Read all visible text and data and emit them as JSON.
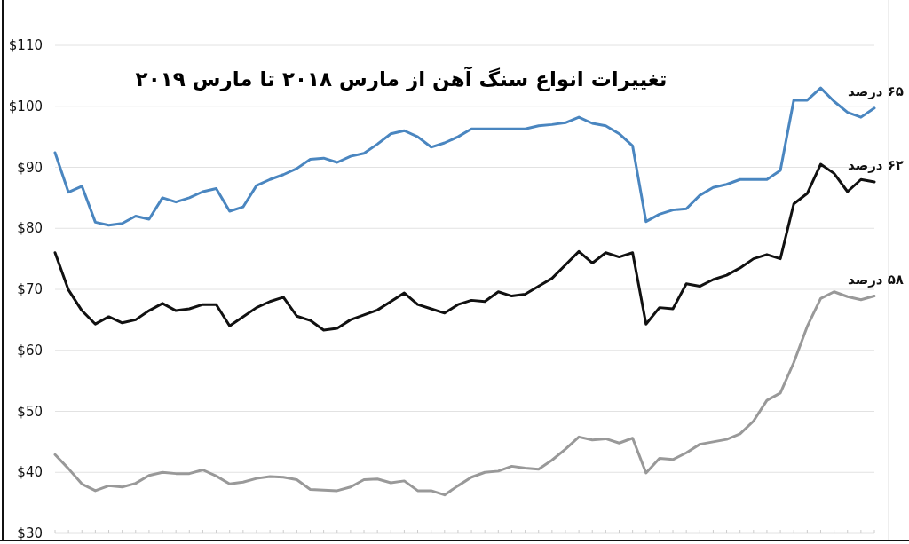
{
  "chart_data": {
    "type": "line",
    "title": "تغییرات انواع سنگ آهن از مارس ۲۰۱۸ تا مارس ۲۰۱۹",
    "categories": [
      null,
      null,
      null,
      null,
      null,
      null,
      null,
      null,
      null,
      null,
      null,
      null,
      null,
      null,
      null,
      null,
      null,
      null,
      null,
      null,
      null,
      null,
      null,
      null,
      null,
      null,
      null,
      null,
      null,
      null,
      null,
      null,
      null,
      null,
      null,
      null,
      null,
      null,
      null,
      null,
      null,
      null,
      null,
      null,
      null,
      null,
      null,
      null,
      null,
      null,
      null,
      null,
      null,
      null,
      null,
      null,
      null,
      null,
      null,
      null,
      null,
      null
    ],
    "series": [
      {
        "name": "۶۵ درصد",
        "color": "#4a86c0",
        "values": [
          92.4,
          85.9,
          86.9,
          81,
          80.5,
          80.8,
          82,
          81.5,
          85,
          84.3,
          85,
          86,
          86.5,
          82.8,
          83.5,
          87,
          88,
          88.8,
          89.8,
          91.3,
          91.5,
          90.8,
          91.8,
          92.3,
          93.8,
          95.5,
          96,
          95,
          93.3,
          94,
          95,
          96.3,
          96.3,
          96.3,
          96.3,
          96.3,
          96.8,
          97,
          97.3,
          98.2,
          97.2,
          96.8,
          95.5,
          93.5,
          81.1,
          82.3,
          83,
          83.2,
          85.4,
          86.7,
          87.2,
          88,
          88,
          88,
          89.5,
          101,
          101,
          103,
          100.8,
          99,
          98.2,
          99.7
        ]
      },
      {
        "name": "۶۲ درصد",
        "color": "#111111",
        "values": [
          76,
          69.9,
          66.5,
          64.3,
          65.5,
          64.5,
          65,
          66.5,
          67.7,
          66.5,
          66.8,
          67.5,
          67.5,
          64,
          65.5,
          67,
          68,
          68.7,
          65.6,
          64.9,
          63.3,
          63.6,
          65,
          65.8,
          66.6,
          68,
          69.4,
          67.5,
          66.8,
          66.1,
          67.5,
          68.2,
          68,
          69.6,
          68.9,
          69.2,
          70.5,
          71.8,
          74,
          76.2,
          74.3,
          76,
          75.3,
          76,
          64.3,
          67,
          66.8,
          70.9,
          70.5,
          71.6,
          72.3,
          73.5,
          75,
          75.7,
          75,
          84,
          85.7,
          90.5,
          89,
          86,
          88,
          87.6
        ]
      },
      {
        "name": "۵۸ درصد",
        "color": "#999999",
        "values": [
          42.9,
          40.6,
          38.1,
          37,
          37.8,
          37.6,
          38.2,
          39.5,
          40,
          39.8,
          39.8,
          40.4,
          39.4,
          38.1,
          38.4,
          39,
          39.3,
          39.2,
          38.8,
          37.2,
          37.1,
          37,
          37.6,
          38.8,
          38.9,
          38.3,
          38.6,
          37,
          37,
          36.3,
          37.8,
          39.2,
          40,
          40.2,
          41,
          40.7,
          40.5,
          42,
          43.8,
          45.8,
          45.3,
          45.5,
          44.8,
          45.6,
          39.9,
          42.3,
          42.1,
          43.2,
          44.6,
          45,
          45.4,
          46.3,
          48.4,
          51.8,
          53,
          58,
          63.9,
          68.5,
          69.6,
          68.8,
          68.3,
          68.9
        ]
      }
    ],
    "ylim": [
      30,
      110
    ],
    "yticks": [
      {
        "value": 30,
        "label": "$30"
      },
      {
        "value": 40,
        "label": "$40"
      },
      {
        "value": 50,
        "label": "$50"
      },
      {
        "value": 60,
        "label": "$60"
      },
      {
        "value": 70,
        "label": "$70"
      },
      {
        "value": 80,
        "label": "$80"
      },
      {
        "value": 90,
        "label": "$90"
      },
      {
        "value": 100,
        "label": "$100"
      },
      {
        "value": 110,
        "label": "$110"
      }
    ],
    "grid": "y",
    "marker": "none",
    "line_style": "solid"
  }
}
